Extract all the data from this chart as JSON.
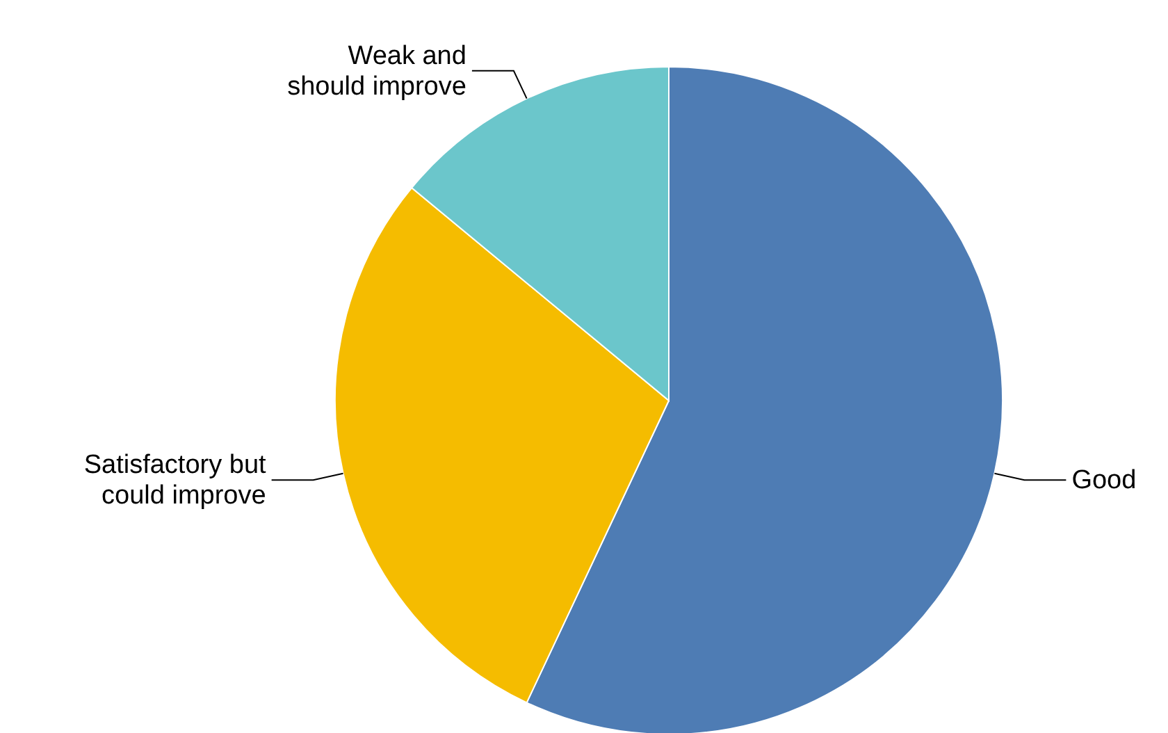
{
  "chart_data": {
    "type": "pie",
    "categories": [
      "Good",
      "Satisfactory but could improve",
      "Weak and should improve"
    ],
    "values": [
      57,
      29,
      14
    ],
    "colors": [
      "#4e7cb4",
      "#f5bc00",
      "#6bc6cb"
    ]
  }
}
